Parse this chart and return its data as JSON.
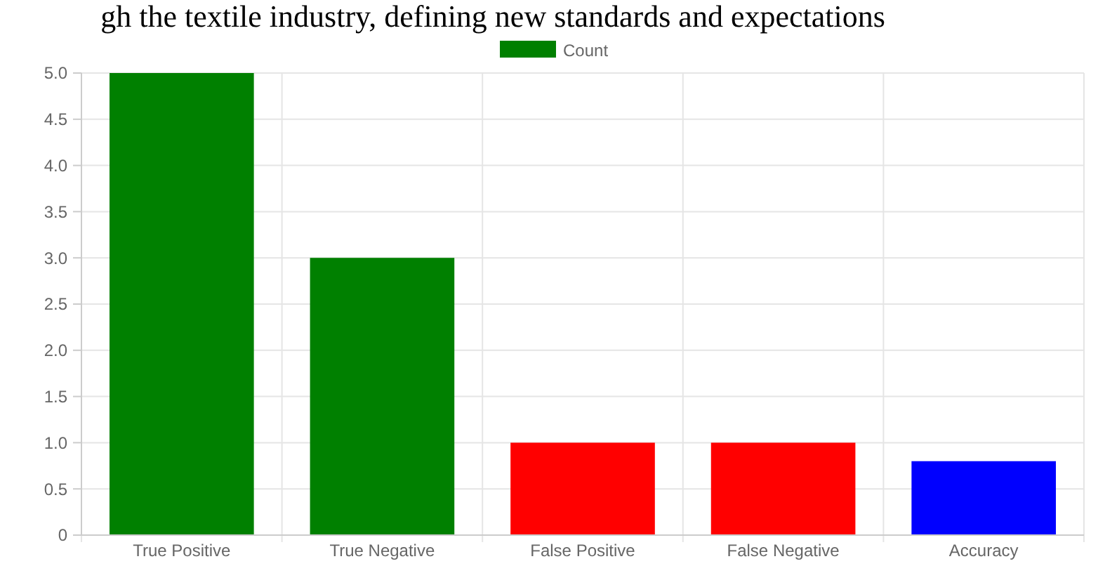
{
  "chart_data": {
    "type": "bar",
    "annotations": [
      "gh the textile industry, defining new standards and expectations"
    ],
    "categories": [
      "True Positive",
      "True Negative",
      "False Positive",
      "False Negative",
      "Accuracy"
    ],
    "series": [
      {
        "name": "Count",
        "color": "#008000",
        "colors": [
          "#008000",
          "#008000",
          "#ff0000",
          "#ff0000",
          "#0000ff"
        ],
        "values": [
          5,
          3,
          1,
          1,
          0.8
        ]
      }
    ],
    "ylim": [
      0,
      5
    ],
    "yticks": [
      {
        "value": 0,
        "label": "0"
      },
      {
        "value": 0.5,
        "label": "0.5"
      },
      {
        "value": 1,
        "label": "1.0"
      },
      {
        "value": 1.5,
        "label": "1.5"
      },
      {
        "value": 2,
        "label": "2.0"
      },
      {
        "value": 2.5,
        "label": "2.5"
      },
      {
        "value": 3,
        "label": "3.0"
      },
      {
        "value": 3.5,
        "label": "3.5"
      },
      {
        "value": 4,
        "label": "4.0"
      },
      {
        "value": 4.5,
        "label": "4.5"
      },
      {
        "value": 5,
        "label": "5.0"
      }
    ],
    "grid": true,
    "legend": "top"
  }
}
